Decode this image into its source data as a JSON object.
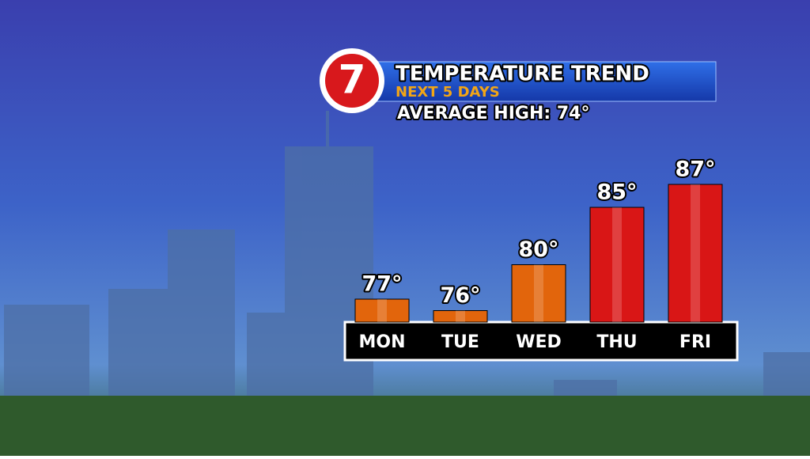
{
  "logo": "7",
  "chart_data": {
    "type": "bar",
    "title": "TEMPERATURE TREND",
    "subtitle": "NEXT 5 DAYS",
    "annotation": "AVERAGE HIGH: 74°",
    "categories": [
      "MON",
      "TUE",
      "WED",
      "THU",
      "FRI"
    ],
    "values": [
      77,
      76,
      80,
      85,
      87
    ],
    "value_labels": [
      "77°",
      "76°",
      "80°",
      "85°",
      "87°"
    ],
    "colors": [
      "#e2650c",
      "#e2650c",
      "#e2650c",
      "#d91616",
      "#d91616"
    ],
    "ylim": [
      75,
      87
    ]
  }
}
